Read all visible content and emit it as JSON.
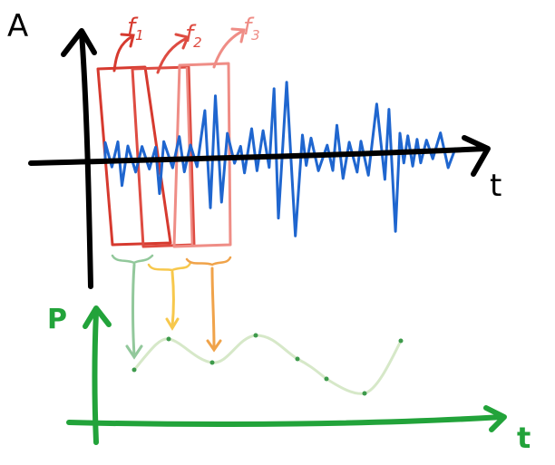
{
  "top_plot": {
    "y_axis_label": "A",
    "x_axis_label": "t",
    "frames": [
      {
        "label": "f",
        "sub": "1",
        "color": "#d63a2f"
      },
      {
        "label": "f",
        "sub": "2",
        "color": "#de4c42"
      },
      {
        "label": "f",
        "sub": "3",
        "color": "#ef8d86"
      }
    ],
    "signal_color": "#1f66cf",
    "axis_color": "#000000"
  },
  "bottom_plot": {
    "y_axis_label": "P",
    "x_axis_label": "t",
    "axis_color": "#22a33a",
    "curve_color": "#d6e8c8",
    "point_color": "#3d9a4b"
  },
  "connectors": {
    "colors": [
      "#92c89b",
      "#f7c84c",
      "#f0a34a"
    ]
  }
}
